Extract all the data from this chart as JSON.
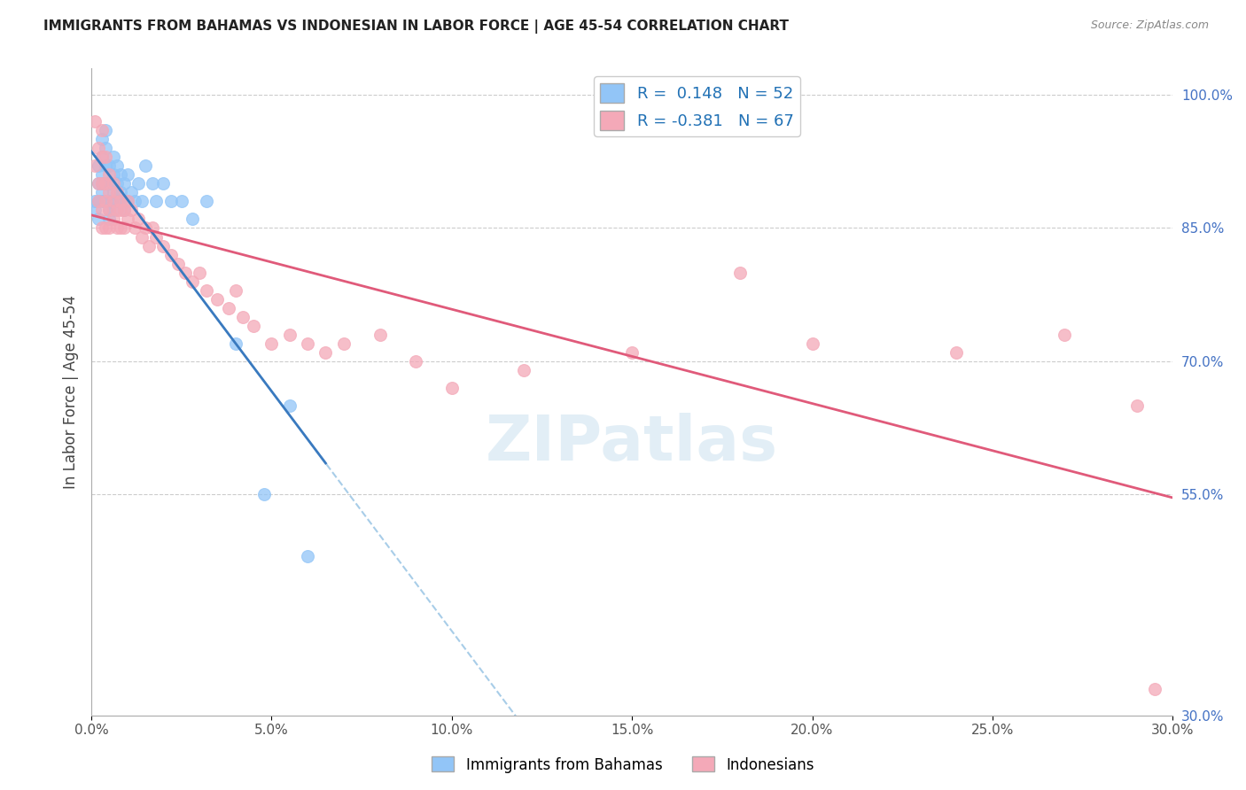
{
  "title": "IMMIGRANTS FROM BAHAMAS VS INDONESIAN IN LABOR FORCE | AGE 45-54 CORRELATION CHART",
  "source": "Source: ZipAtlas.com",
  "ylabel": "In Labor Force | Age 45-54",
  "xlim": [
    0.0,
    0.3
  ],
  "ylim": [
    0.3,
    1.03
  ],
  "xticks": [
    0.0,
    0.05,
    0.1,
    0.15,
    0.2,
    0.25,
    0.3
  ],
  "xtick_labels": [
    "0.0%",
    "5.0%",
    "10.0%",
    "15.0%",
    "20.0%",
    "25.0%",
    "30.0%"
  ],
  "right_yticks": [
    1.0,
    0.85,
    0.7,
    0.55,
    0.3
  ],
  "right_ytick_labels": [
    "100.0%",
    "85.0%",
    "70.0%",
    "55.0%",
    "30.0%"
  ],
  "grid_yticks": [
    0.55,
    0.7,
    0.85,
    1.0
  ],
  "bahamas_color": "#92c5f7",
  "indonesian_color": "#f4a9b8",
  "bahamas_R": 0.148,
  "bahamas_N": 52,
  "indonesian_R": -0.381,
  "indonesian_N": 67,
  "bahamas_line_color": "#3a7abf",
  "indonesian_line_color": "#e05a7a",
  "bahamas_dashed_color": "#a8cde8",
  "watermark_color": "#d0e4f0",
  "bahamas_x": [
    0.001,
    0.001,
    0.002,
    0.002,
    0.002,
    0.002,
    0.003,
    0.003,
    0.003,
    0.003,
    0.003,
    0.003,
    0.004,
    0.004,
    0.004,
    0.004,
    0.004,
    0.005,
    0.005,
    0.005,
    0.005,
    0.005,
    0.006,
    0.006,
    0.006,
    0.006,
    0.007,
    0.007,
    0.007,
    0.008,
    0.008,
    0.008,
    0.009,
    0.009,
    0.01,
    0.01,
    0.011,
    0.012,
    0.013,
    0.014,
    0.015,
    0.017,
    0.018,
    0.02,
    0.022,
    0.025,
    0.028,
    0.032,
    0.04,
    0.048,
    0.055,
    0.06
  ],
  "bahamas_y": [
    0.87,
    0.88,
    0.92,
    0.9,
    0.88,
    0.86,
    0.95,
    0.93,
    0.91,
    0.9,
    0.89,
    0.88,
    0.96,
    0.94,
    0.92,
    0.9,
    0.88,
    0.92,
    0.9,
    0.88,
    0.87,
    0.86,
    0.93,
    0.91,
    0.89,
    0.87,
    0.92,
    0.9,
    0.88,
    0.91,
    0.89,
    0.88,
    0.9,
    0.87,
    0.91,
    0.88,
    0.89,
    0.88,
    0.9,
    0.88,
    0.92,
    0.9,
    0.88,
    0.9,
    0.88,
    0.88,
    0.86,
    0.88,
    0.72,
    0.55,
    0.65,
    0.48
  ],
  "indonesian_x": [
    0.001,
    0.001,
    0.002,
    0.002,
    0.002,
    0.003,
    0.003,
    0.003,
    0.003,
    0.003,
    0.004,
    0.004,
    0.004,
    0.004,
    0.005,
    0.005,
    0.005,
    0.005,
    0.006,
    0.006,
    0.006,
    0.007,
    0.007,
    0.007,
    0.008,
    0.008,
    0.008,
    0.009,
    0.009,
    0.01,
    0.01,
    0.011,
    0.012,
    0.013,
    0.014,
    0.015,
    0.016,
    0.017,
    0.018,
    0.02,
    0.022,
    0.024,
    0.026,
    0.028,
    0.03,
    0.032,
    0.035,
    0.038,
    0.04,
    0.042,
    0.045,
    0.05,
    0.055,
    0.06,
    0.065,
    0.07,
    0.08,
    0.09,
    0.1,
    0.12,
    0.15,
    0.18,
    0.2,
    0.24,
    0.27,
    0.29,
    0.295
  ],
  "indonesian_y": [
    0.97,
    0.92,
    0.94,
    0.9,
    0.88,
    0.96,
    0.93,
    0.9,
    0.87,
    0.85,
    0.93,
    0.9,
    0.88,
    0.85,
    0.91,
    0.89,
    0.87,
    0.85,
    0.9,
    0.88,
    0.86,
    0.89,
    0.87,
    0.85,
    0.88,
    0.87,
    0.85,
    0.87,
    0.85,
    0.88,
    0.86,
    0.87,
    0.85,
    0.86,
    0.84,
    0.85,
    0.83,
    0.85,
    0.84,
    0.83,
    0.82,
    0.81,
    0.8,
    0.79,
    0.8,
    0.78,
    0.77,
    0.76,
    0.78,
    0.75,
    0.74,
    0.72,
    0.73,
    0.72,
    0.71,
    0.72,
    0.73,
    0.7,
    0.67,
    0.69,
    0.71,
    0.8,
    0.72,
    0.71,
    0.73,
    0.65,
    0.33
  ]
}
